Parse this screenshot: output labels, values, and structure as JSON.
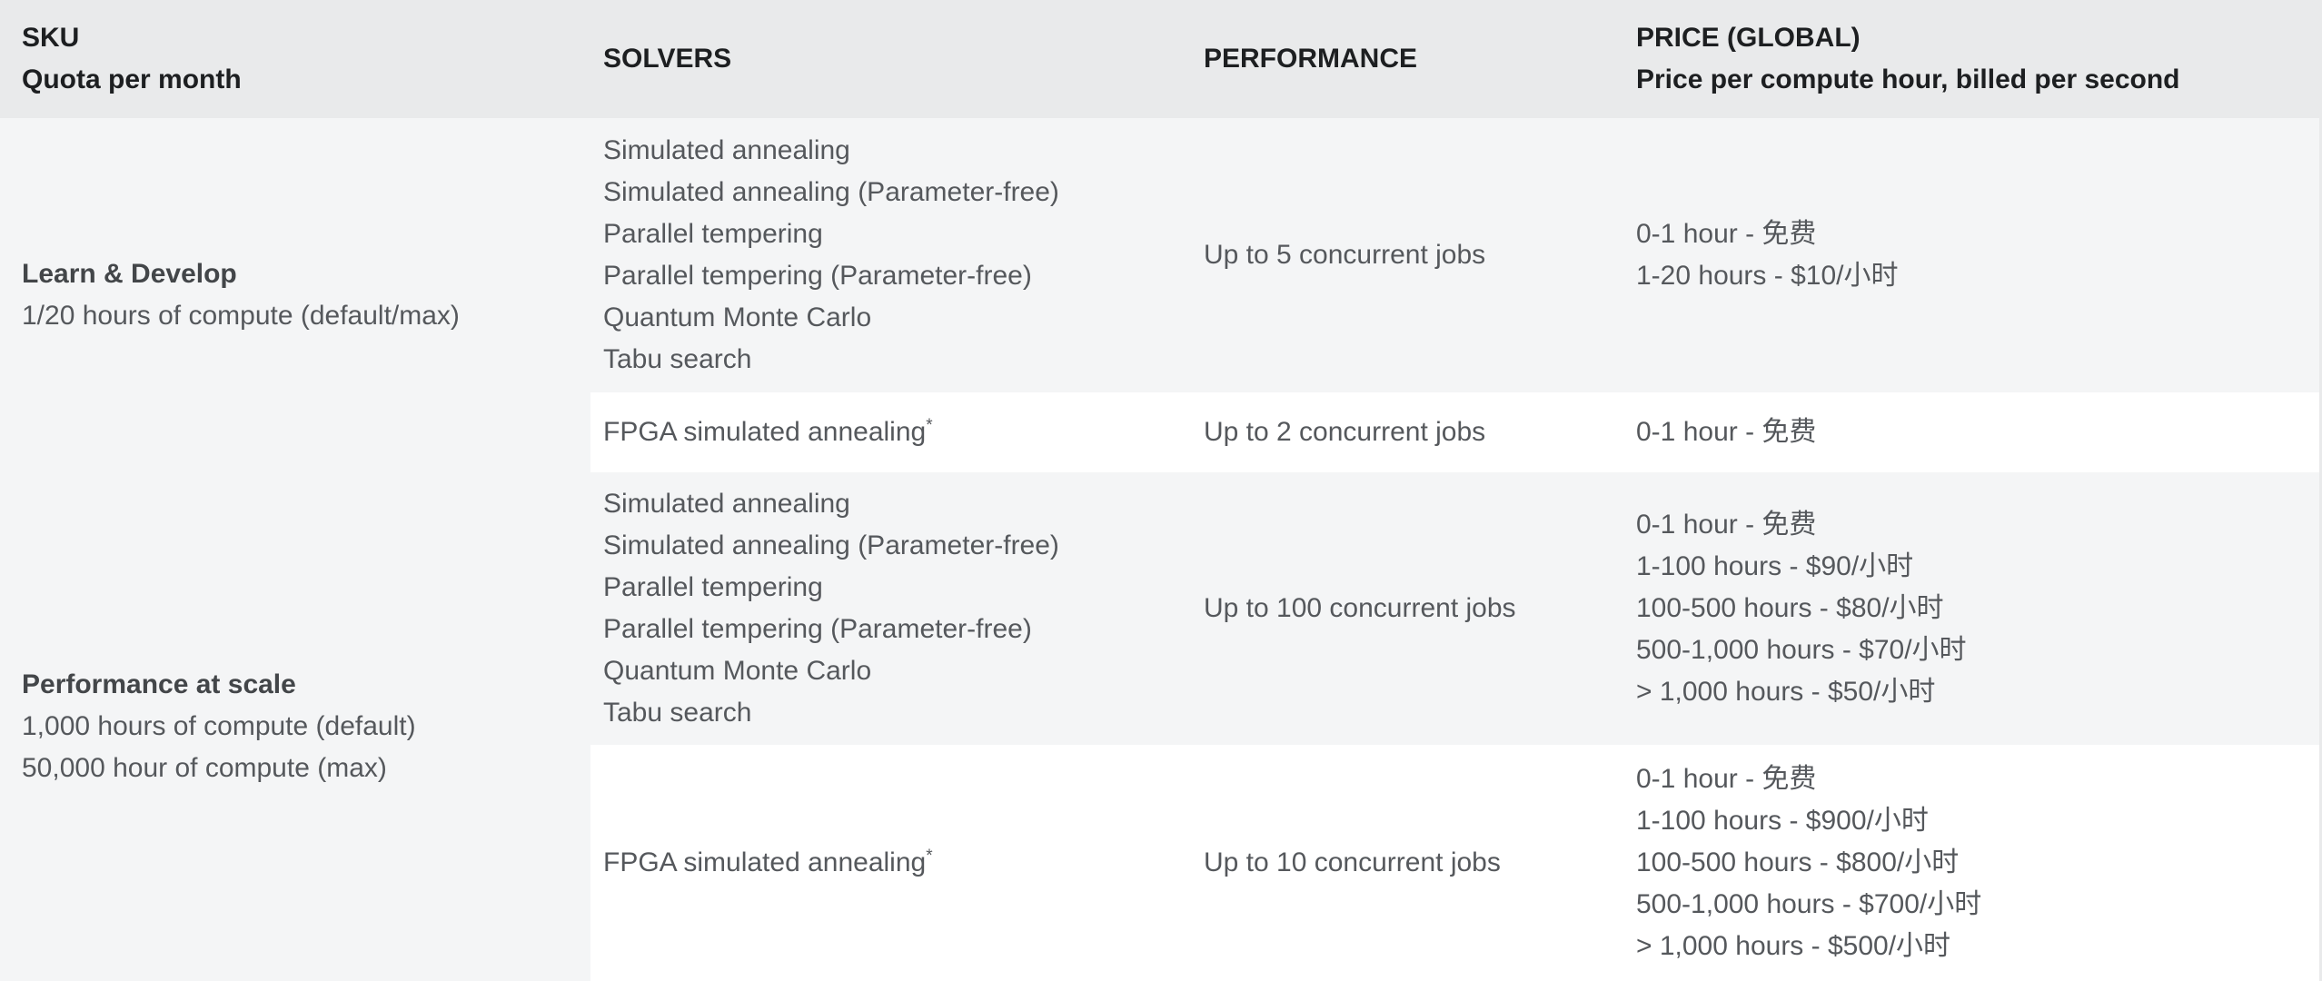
{
  "colors": {
    "header_bg": "#e9eaeb",
    "row_gray_bg": "#f4f5f6",
    "row_white_bg": "#ffffff",
    "header_text": "#1d1f21",
    "sku_title_text": "#434649",
    "body_text": "#55585c"
  },
  "header": {
    "columns": [
      {
        "title": "SKU",
        "subtitle": "Quota per month"
      },
      {
        "title": "SOLVERS",
        "subtitle": ""
      },
      {
        "title": "PERFORMANCE",
        "subtitle": ""
      },
      {
        "title": "PRICE (GLOBAL)",
        "subtitle": "Price per compute hour, billed per second"
      }
    ]
  },
  "sections": [
    {
      "sku": {
        "title": "Learn & Develop",
        "lines": [
          "1/20 hours of compute (default/max)"
        ]
      },
      "rows": [
        {
          "shade": "gray",
          "solvers": [
            {
              "name": "Simulated annealing"
            },
            {
              "name": "Simulated annealing (Parameter-free)"
            },
            {
              "name": "Parallel tempering"
            },
            {
              "name": "Parallel tempering (Parameter-free)"
            },
            {
              "name": "Quantum Monte Carlo"
            },
            {
              "name": "Tabu search"
            }
          ],
          "performance": "Up to 5 concurrent jobs",
          "prices": [
            "0-1 hour - 免费",
            "1-20 hours - $10/小时"
          ]
        },
        {
          "shade": "white",
          "solvers": [
            {
              "name": "FPGA simulated annealing",
              "sup": "*"
            }
          ],
          "performance": "Up to 2 concurrent jobs",
          "prices": [
            "0-1 hour - 免费"
          ]
        }
      ]
    },
    {
      "sku": {
        "title": "Performance at scale",
        "lines": [
          "1,000 hours of compute (default)",
          "50,000 hour of compute (max)"
        ]
      },
      "rows": [
        {
          "shade": "gray",
          "solvers": [
            {
              "name": "Simulated annealing"
            },
            {
              "name": "Simulated annealing (Parameter-free)"
            },
            {
              "name": "Parallel tempering"
            },
            {
              "name": "Parallel tempering (Parameter-free)"
            },
            {
              "name": "Quantum Monte Carlo"
            },
            {
              "name": "Tabu search"
            }
          ],
          "performance": "Up to 100 concurrent jobs",
          "prices": [
            "0-1 hour - 免费",
            "1-100 hours - $90/小时",
            "100-500 hours - $80/小时",
            "500-1,000 hours - $70/小时",
            "> 1,000 hours - $50/小时"
          ]
        },
        {
          "shade": "white",
          "solvers": [
            {
              "name": "FPGA simulated annealing",
              "sup": "*"
            }
          ],
          "performance": "Up to 10 concurrent jobs",
          "prices": [
            "0-1 hour - 免费",
            "1-100 hours - $900/小时",
            "100-500 hours - $800/小时",
            "500-1,000 hours - $700/小时",
            "> 1,000 hours - $500/小时"
          ]
        }
      ]
    }
  ]
}
